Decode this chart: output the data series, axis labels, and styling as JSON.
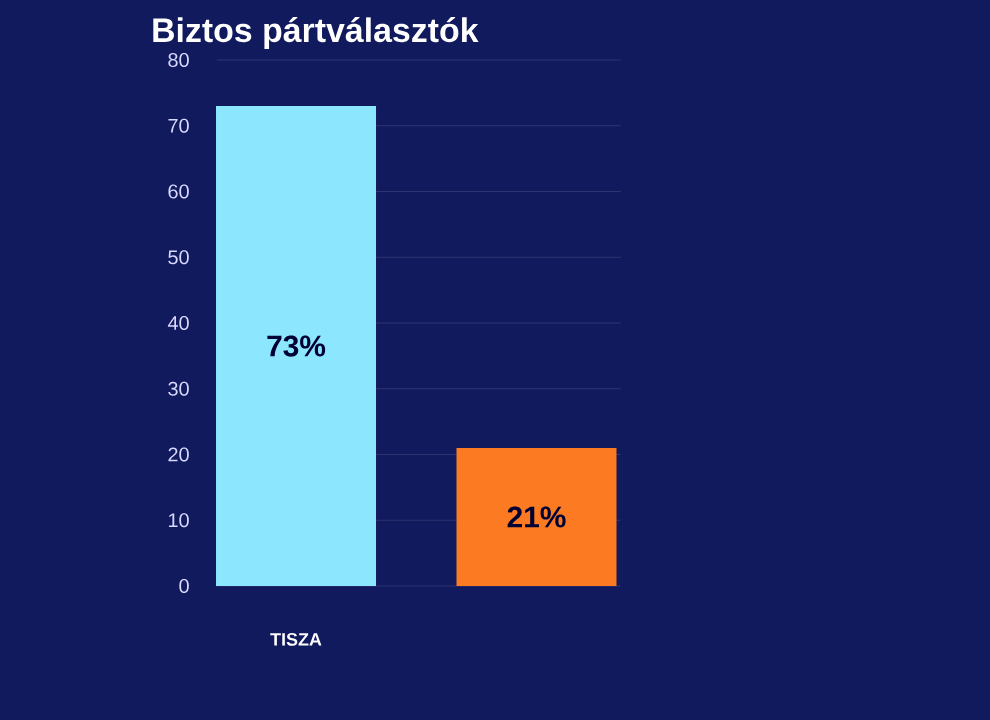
{
  "chart_data": {
    "type": "bar",
    "title": "Biztos pártválasztók",
    "categories": [
      "TISZA",
      null
    ],
    "values": [
      73,
      21
    ],
    "colors": [
      "#8ce6fe",
      "#fb7a22"
    ],
    "value_labels": [
      "73%",
      "21%"
    ],
    "ylim": [
      0,
      80
    ],
    "yticks": [
      0,
      10,
      20,
      30,
      40,
      50,
      60,
      70,
      80
    ],
    "grid": "y"
  }
}
